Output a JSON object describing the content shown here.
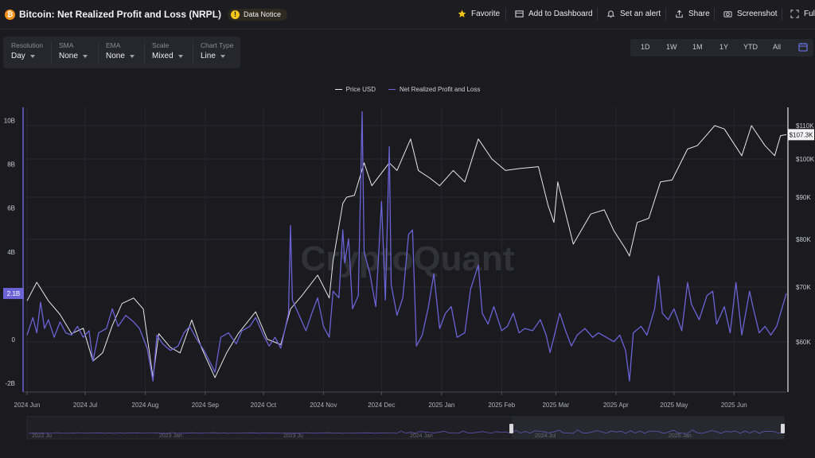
{
  "header": {
    "title": "Bitcoin: Net Realized Profit and Loss (NRPL)",
    "notice": "Data Notice",
    "actions": {
      "favorite": "Favorite",
      "dashboard": "Add to Dashboard",
      "alert": "Set an alert",
      "share": "Share",
      "screenshot": "Screenshot",
      "full": "Full"
    }
  },
  "controls": [
    {
      "label": "Resolution",
      "value": "Day"
    },
    {
      "label": "SMA",
      "value": "None"
    },
    {
      "label": "EMA",
      "value": "None"
    },
    {
      "label": "Scale",
      "value": "Mixed"
    },
    {
      "label": "Chart Type",
      "value": "Line"
    }
  ],
  "ranges": [
    "1D",
    "1W",
    "1M",
    "1Y",
    "YTD",
    "All"
  ],
  "watermark": "CryptoQuant",
  "chart_data": {
    "type": "line",
    "x_range": [
      "2024-06-01",
      "2025-06-28"
    ],
    "x_ticks": [
      "2024 Jun",
      "2024 Jul",
      "2024 Aug",
      "2024 Sep",
      "2024 Oct",
      "2024 Nov",
      "2024 Dec",
      "2025 Jan",
      "2025 Feb",
      "2025 Mar",
      "2025 Apr",
      "2025 May",
      "2025 Jun"
    ],
    "left_axis": {
      "ticks": [
        10,
        8,
        6,
        4,
        0,
        -2
      ],
      "tick_labels": [
        "10B",
        "8B",
        "6B",
        "4B",
        "0",
        "-2B"
      ],
      "range": [
        -2.4,
        10.6
      ],
      "current_label": "2.1B"
    },
    "right_axis": {
      "ticks": [
        110000,
        100000,
        90000,
        80000,
        70000,
        60000
      ],
      "tick_labels": [
        "$110K",
        "$100K",
        "$90K",
        "$80K",
        "$70K",
        "$60K"
      ],
      "current_label": "$107.3K"
    },
    "series": [
      {
        "name": "Price USD",
        "color": "#e8e8ea",
        "axis": "right",
        "points": [
          [
            "2024-06-01",
            67500
          ],
          [
            "2024-06-06",
            71000
          ],
          [
            "2024-06-12",
            67500
          ],
          [
            "2024-06-18",
            65000
          ],
          [
            "2024-06-24",
            61500
          ],
          [
            "2024-06-30",
            62500
          ],
          [
            "2024-07-05",
            56500
          ],
          [
            "2024-07-10",
            58000
          ],
          [
            "2024-07-15",
            63000
          ],
          [
            "2024-07-20",
            67000
          ],
          [
            "2024-07-26",
            68000
          ],
          [
            "2024-07-31",
            66000
          ],
          [
            "2024-08-05",
            53500
          ],
          [
            "2024-08-08",
            61500
          ],
          [
            "2024-08-14",
            59000
          ],
          [
            "2024-08-19",
            58000
          ],
          [
            "2024-08-25",
            64000
          ],
          [
            "2024-08-30",
            59000
          ],
          [
            "2024-09-06",
            53500
          ],
          [
            "2024-09-12",
            58000
          ],
          [
            "2024-09-18",
            61500
          ],
          [
            "2024-09-27",
            65500
          ],
          [
            "2024-10-03",
            60500
          ],
          [
            "2024-10-10",
            59500
          ],
          [
            "2024-10-15",
            66000
          ],
          [
            "2024-10-21",
            68500
          ],
          [
            "2024-10-29",
            72500
          ],
          [
            "2024-11-04",
            68000
          ],
          [
            "2024-11-06",
            75500
          ],
          [
            "2024-11-11",
            88500
          ],
          [
            "2024-11-13",
            90000
          ],
          [
            "2024-11-17",
            90500
          ],
          [
            "2024-11-22",
            99000
          ],
          [
            "2024-11-26",
            93000
          ],
          [
            "2024-12-05",
            99000
          ],
          [
            "2024-12-09",
            97000
          ],
          [
            "2024-12-16",
            106000
          ],
          [
            "2024-12-20",
            97000
          ],
          [
            "2024-12-26",
            95000
          ],
          [
            "2024-12-31",
            93000
          ],
          [
            "2025-01-07",
            97000
          ],
          [
            "2025-01-13",
            94000
          ],
          [
            "2025-01-20",
            106000
          ],
          [
            "2025-01-27",
            100000
          ],
          [
            "2025-02-03",
            97000
          ],
          [
            "2025-02-10",
            97500
          ],
          [
            "2025-02-20",
            98000
          ],
          [
            "2025-02-25",
            88000
          ],
          [
            "2025-02-28",
            84000
          ],
          [
            "2025-03-02",
            94000
          ],
          [
            "2025-03-10",
            79000
          ],
          [
            "2025-03-19",
            86000
          ],
          [
            "2025-03-26",
            87000
          ],
          [
            "2025-03-31",
            82000
          ],
          [
            "2025-04-06",
            78000
          ],
          [
            "2025-04-08",
            76500
          ],
          [
            "2025-04-12",
            84000
          ],
          [
            "2025-04-18",
            85000
          ],
          [
            "2025-04-24",
            94000
          ],
          [
            "2025-04-30",
            94500
          ],
          [
            "2025-05-08",
            103000
          ],
          [
            "2025-05-13",
            104000
          ],
          [
            "2025-05-22",
            110000
          ],
          [
            "2025-05-27",
            109000
          ],
          [
            "2025-06-05",
            101000
          ],
          [
            "2025-06-10",
            110000
          ],
          [
            "2025-06-17",
            104000
          ],
          [
            "2025-06-22",
            101000
          ],
          [
            "2025-06-25",
            107000
          ],
          [
            "2025-06-28",
            107300
          ]
        ]
      },
      {
        "name": "Net Realized Profit and Loss",
        "color": "#6b63d6",
        "axis": "left",
        "points": [
          [
            "2024-06-01",
            0.2
          ],
          [
            "2024-06-04",
            1.0
          ],
          [
            "2024-06-06",
            0.3
          ],
          [
            "2024-06-08",
            1.7
          ],
          [
            "2024-06-10",
            0.5
          ],
          [
            "2024-06-12",
            0.9
          ],
          [
            "2024-06-15",
            0.1
          ],
          [
            "2024-06-18",
            0.8
          ],
          [
            "2024-06-21",
            0.3
          ],
          [
            "2024-06-24",
            0.2
          ],
          [
            "2024-06-27",
            0.6
          ],
          [
            "2024-06-30",
            0.1
          ],
          [
            "2024-07-03",
            0.4
          ],
          [
            "2024-07-05",
            -1.0
          ],
          [
            "2024-07-08",
            0.3
          ],
          [
            "2024-07-12",
            0.5
          ],
          [
            "2024-07-15",
            1.4
          ],
          [
            "2024-07-18",
            0.6
          ],
          [
            "2024-07-22",
            1.1
          ],
          [
            "2024-07-26",
            0.8
          ],
          [
            "2024-07-29",
            0.5
          ],
          [
            "2024-08-02",
            -0.4
          ],
          [
            "2024-08-05",
            -1.9
          ],
          [
            "2024-08-07",
            0.2
          ],
          [
            "2024-08-10",
            -0.2
          ],
          [
            "2024-08-14",
            -0.5
          ],
          [
            "2024-08-18",
            -0.3
          ],
          [
            "2024-08-21",
            0.3
          ],
          [
            "2024-08-24",
            0.6
          ],
          [
            "2024-08-27",
            0.1
          ],
          [
            "2024-09-01",
            -0.6
          ],
          [
            "2024-09-06",
            -1.5
          ],
          [
            "2024-09-09",
            0.1
          ],
          [
            "2024-09-13",
            0.3
          ],
          [
            "2024-09-17",
            -0.2
          ],
          [
            "2024-09-20",
            0.4
          ],
          [
            "2024-09-24",
            0.6
          ],
          [
            "2024-09-27",
            1.0
          ],
          [
            "2024-10-01",
            0.2
          ],
          [
            "2024-10-04",
            -0.3
          ],
          [
            "2024-10-07",
            0.1
          ],
          [
            "2024-10-10",
            -0.4
          ],
          [
            "2024-10-14",
            1.2
          ],
          [
            "2024-10-15",
            5.2
          ],
          [
            "2024-10-16",
            1.8
          ],
          [
            "2024-10-20",
            1.0
          ],
          [
            "2024-10-23",
            0.4
          ],
          [
            "2024-10-26",
            1.2
          ],
          [
            "2024-10-29",
            1.9
          ],
          [
            "2024-11-01",
            0.6
          ],
          [
            "2024-11-04",
            0.1
          ],
          [
            "2024-11-06",
            2.2
          ],
          [
            "2024-11-09",
            1.9
          ],
          [
            "2024-11-11",
            5.0
          ],
          [
            "2024-11-12",
            3.5
          ],
          [
            "2024-11-14",
            4.6
          ],
          [
            "2024-11-16",
            1.4
          ],
          [
            "2024-11-19",
            2.0
          ],
          [
            "2024-11-21",
            10.4
          ],
          [
            "2024-11-22",
            4.0
          ],
          [
            "2024-11-25",
            3.0
          ],
          [
            "2024-11-28",
            1.5
          ],
          [
            "2024-12-01",
            6.3
          ],
          [
            "2024-12-03",
            1.8
          ],
          [
            "2024-12-05",
            8.8
          ],
          [
            "2024-12-06",
            2.5
          ],
          [
            "2024-12-09",
            1.1
          ],
          [
            "2024-12-12",
            1.9
          ],
          [
            "2024-12-15",
            4.8
          ],
          [
            "2024-12-17",
            5.0
          ],
          [
            "2024-12-19",
            -0.3
          ],
          [
            "2024-12-22",
            0.2
          ],
          [
            "2024-12-25",
            1.4
          ],
          [
            "2024-12-28",
            3.0
          ],
          [
            "2024-12-31",
            0.5
          ],
          [
            "2025-01-03",
            1.2
          ],
          [
            "2025-01-06",
            1.5
          ],
          [
            "2025-01-09",
            0.1
          ],
          [
            "2025-01-13",
            0.3
          ],
          [
            "2025-01-16",
            2.3
          ],
          [
            "2025-01-20",
            3.4
          ],
          [
            "2025-01-22",
            1.2
          ],
          [
            "2025-01-25",
            0.7
          ],
          [
            "2025-01-28",
            1.5
          ],
          [
            "2025-02-01",
            0.4
          ],
          [
            "2025-02-04",
            0.6
          ],
          [
            "2025-02-07",
            1.2
          ],
          [
            "2025-02-10",
            0.3
          ],
          [
            "2025-02-13",
            0.5
          ],
          [
            "2025-02-17",
            0.4
          ],
          [
            "2025-02-21",
            0.9
          ],
          [
            "2025-02-24",
            0.2
          ],
          [
            "2025-02-26",
            -0.6
          ],
          [
            "2025-02-28",
            0.1
          ],
          [
            "2025-03-03",
            1.2
          ],
          [
            "2025-03-06",
            0.4
          ],
          [
            "2025-03-09",
            -0.3
          ],
          [
            "2025-03-12",
            0.2
          ],
          [
            "2025-03-16",
            0.5
          ],
          [
            "2025-03-20",
            0.1
          ],
          [
            "2025-03-23",
            0.3
          ],
          [
            "2025-03-27",
            0.1
          ],
          [
            "2025-03-31",
            -0.1
          ],
          [
            "2025-04-03",
            0.2
          ],
          [
            "2025-04-06",
            -0.5
          ],
          [
            "2025-04-08",
            -1.9
          ],
          [
            "2025-04-10",
            0.3
          ],
          [
            "2025-04-14",
            0.6
          ],
          [
            "2025-04-17",
            0.2
          ],
          [
            "2025-04-21",
            1.4
          ],
          [
            "2025-04-23",
            2.9
          ],
          [
            "2025-04-25",
            1.2
          ],
          [
            "2025-04-28",
            0.9
          ],
          [
            "2025-05-01",
            1.4
          ],
          [
            "2025-05-05",
            0.4
          ],
          [
            "2025-05-08",
            2.6
          ],
          [
            "2025-05-10",
            1.6
          ],
          [
            "2025-05-14",
            0.9
          ],
          [
            "2025-05-18",
            2.0
          ],
          [
            "2025-05-21",
            2.2
          ],
          [
            "2025-05-23",
            0.7
          ],
          [
            "2025-05-27",
            1.5
          ],
          [
            "2025-05-30",
            0.3
          ],
          [
            "2025-06-02",
            2.6
          ],
          [
            "2025-06-05",
            0.2
          ],
          [
            "2025-06-09",
            2.2
          ],
          [
            "2025-06-11",
            1.4
          ],
          [
            "2025-06-14",
            0.3
          ],
          [
            "2025-06-17",
            0.6
          ],
          [
            "2025-06-20",
            0.2
          ],
          [
            "2025-06-23",
            0.6
          ],
          [
            "2025-06-25",
            1.2
          ],
          [
            "2025-06-28",
            2.1
          ]
        ]
      }
    ],
    "navigator_labels": [
      "2022 Ju",
      "2023 Jan",
      "2023 Ju",
      "2024 Jan",
      "2024 Jul",
      "2025 Jan"
    ]
  }
}
